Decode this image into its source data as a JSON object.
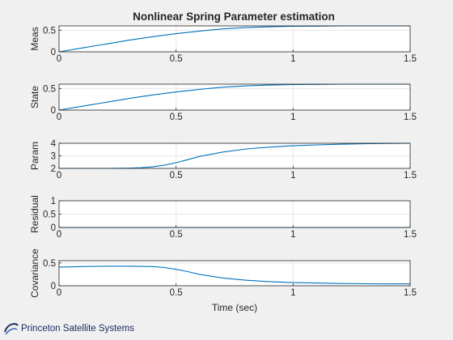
{
  "figure": {
    "background": "#f0f0f0",
    "axes_background": "#ffffff",
    "line_color": "#0072bd",
    "grid_color": "#e6e6e6"
  },
  "logo": {
    "text": "Princeton Satellite Systems",
    "icon": "orbit-swoosh-icon",
    "color": "#1a2a5e"
  },
  "chart_data": [
    {
      "type": "line",
      "title": "Nonlinear Spring Parameter estimation",
      "ylabel": "Meas",
      "xlabel": "",
      "xlim": [
        0,
        1.5
      ],
      "ylim": [
        0,
        0.6
      ],
      "xticks": [
        0,
        0.5,
        1,
        1.5
      ],
      "yticks": [
        0,
        0.5
      ],
      "xticklabels": [
        "0",
        "0.5",
        "1",
        "1.5"
      ],
      "yticklabels": [
        "0",
        "0.5"
      ],
      "grid": true,
      "series": [
        {
          "x": [
            0,
            0.1,
            0.2,
            0.3,
            0.4,
            0.5,
            0.6,
            0.7,
            0.8,
            0.9,
            1.0,
            1.1,
            1.2,
            1.3,
            1.4,
            1.5
          ],
          "values": [
            0,
            0.09,
            0.18,
            0.27,
            0.35,
            0.42,
            0.48,
            0.53,
            0.56,
            0.58,
            0.59,
            0.595,
            0.6,
            0.6,
            0.6,
            0.6
          ]
        }
      ]
    },
    {
      "type": "line",
      "title": "",
      "ylabel": "State",
      "xlabel": "",
      "xlim": [
        0,
        1.5
      ],
      "ylim": [
        0,
        0.6
      ],
      "xticks": [
        0,
        0.5,
        1,
        1.5
      ],
      "yticks": [
        0,
        0.5
      ],
      "xticklabels": [
        "0",
        "0.5",
        "1",
        "1.5"
      ],
      "yticklabels": [
        "0",
        "0.5"
      ],
      "grid": true,
      "series": [
        {
          "x": [
            0,
            0.1,
            0.2,
            0.3,
            0.4,
            0.5,
            0.6,
            0.7,
            0.8,
            0.9,
            1.0,
            1.1,
            1.2,
            1.3,
            1.4,
            1.5
          ],
          "values": [
            0,
            0.09,
            0.18,
            0.27,
            0.35,
            0.42,
            0.48,
            0.53,
            0.56,
            0.58,
            0.59,
            0.595,
            0.6,
            0.6,
            0.6,
            0.6
          ]
        }
      ]
    },
    {
      "type": "line",
      "title": "",
      "ylabel": "Param",
      "xlabel": "",
      "xlim": [
        0,
        1.5
      ],
      "ylim": [
        2,
        4
      ],
      "xticks": [
        0,
        0.5,
        1,
        1.5
      ],
      "yticks": [
        2,
        3,
        4
      ],
      "xticklabels": [
        "0",
        "0.5",
        "1",
        "1.5"
      ],
      "yticklabels": [
        "2",
        "3",
        "4"
      ],
      "grid": true,
      "series": [
        {
          "x": [
            0,
            0.1,
            0.2,
            0.3,
            0.35,
            0.4,
            0.45,
            0.5,
            0.55,
            0.6,
            0.7,
            0.8,
            0.9,
            1.0,
            1.1,
            1.2,
            1.3,
            1.4,
            1.5
          ],
          "values": [
            2,
            2,
            2,
            2.02,
            2.05,
            2.12,
            2.25,
            2.45,
            2.7,
            2.95,
            3.3,
            3.55,
            3.7,
            3.8,
            3.87,
            3.92,
            3.96,
            3.99,
            4.0
          ]
        }
      ]
    },
    {
      "type": "line",
      "title": "",
      "ylabel": "Residual",
      "xlabel": "",
      "xlim": [
        0,
        1.5
      ],
      "ylim": [
        0,
        1
      ],
      "xticks": [
        0,
        0.5,
        1,
        1.5
      ],
      "yticks": [
        0,
        0.5,
        1
      ],
      "xticklabels": [
        "0",
        "0.5",
        "1",
        "1.5"
      ],
      "yticklabels": [
        "0",
        "0.5",
        "1"
      ],
      "grid": true,
      "series": [
        {
          "x": [
            0,
            0.5,
            1.0,
            1.5
          ],
          "values": [
            0,
            0,
            0,
            0
          ]
        }
      ]
    },
    {
      "type": "line",
      "title": "",
      "ylabel": "Covariance",
      "xlabel": "Time (sec)",
      "xlim": [
        0,
        1.5
      ],
      "ylim": [
        0,
        0.55
      ],
      "xticks": [
        0,
        0.5,
        1,
        1.5
      ],
      "yticks": [
        0,
        0.5
      ],
      "xticklabels": [
        "0",
        "0.5",
        "1",
        "1.5"
      ],
      "yticklabels": [
        "0",
        "0.5"
      ],
      "grid": true,
      "series": [
        {
          "x": [
            0,
            0.1,
            0.2,
            0.3,
            0.4,
            0.45,
            0.5,
            0.55,
            0.6,
            0.7,
            0.8,
            0.9,
            1.0,
            1.1,
            1.2,
            1.3,
            1.4,
            1.5
          ],
          "values": [
            0.41,
            0.42,
            0.43,
            0.43,
            0.42,
            0.4,
            0.36,
            0.31,
            0.25,
            0.17,
            0.12,
            0.09,
            0.07,
            0.06,
            0.05,
            0.045,
            0.04,
            0.04
          ]
        }
      ]
    }
  ]
}
